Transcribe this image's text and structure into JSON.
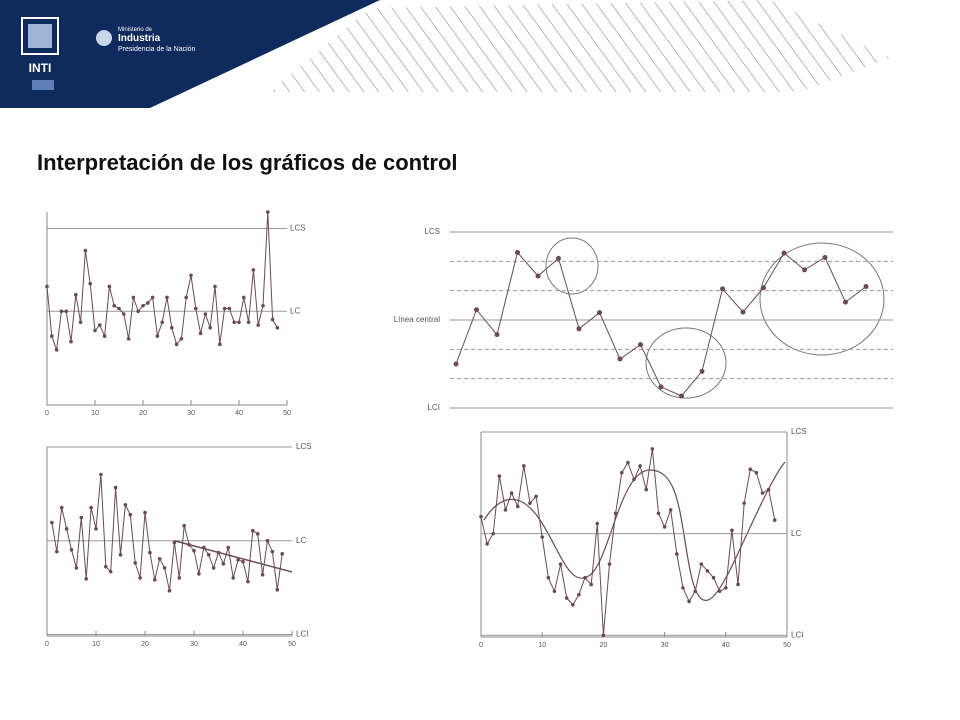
{
  "header": {
    "logo": "INTI",
    "ministry": [
      "Ministerio de",
      "Industria",
      "Presidencia de la Nación"
    ]
  },
  "title": "Interpretación de los gráficos de control",
  "chart_data": [
    {
      "type": "line",
      "ylim": [
        -3.4,
        3.6
      ],
      "xlim": [
        0,
        50
      ],
      "xticks": [
        0,
        10,
        20,
        30,
        40,
        50
      ],
      "limits": [
        {
          "label": "LCS",
          "value": 3
        },
        {
          "label": "LC",
          "value": 0
        }
      ],
      "x": [
        0,
        1,
        2,
        3,
        4,
        5,
        6,
        7,
        8,
        9,
        10,
        11,
        12,
        13,
        14,
        15,
        16,
        17,
        18,
        19,
        20,
        21,
        22,
        23,
        24,
        25,
        26,
        27,
        28,
        29,
        30,
        31,
        32,
        33,
        34,
        35,
        36,
        37,
        38,
        39,
        40,
        41,
        42,
        43,
        44,
        45,
        46,
        47,
        48
      ],
      "values": [
        0.9,
        -0.9,
        -1.4,
        0,
        0,
        -1.1,
        0.6,
        -0.4,
        2.2,
        1.0,
        -0.7,
        -0.5,
        -0.9,
        0.9,
        0.2,
        0.1,
        -0.1,
        -1.0,
        0.5,
        0,
        0.2,
        0.3,
        0.5,
        -0.9,
        -0.4,
        0.5,
        -0.6,
        -1.2,
        -1.0,
        0.5,
        1.3,
        0.1,
        -0.8,
        -0.1,
        -0.6,
        0.9,
        -1.2,
        0.1,
        0.1,
        -0.4,
        -0.4,
        0.5,
        -0.4,
        1.5,
        -0.5,
        0.2,
        3.6,
        -0.3,
        -0.6
      ]
    },
    {
      "type": "line",
      "ylim": [
        -3,
        3
      ],
      "limits": [
        {
          "label": "LCS",
          "value": 3
        },
        {
          "label": "Línea central",
          "value": 0
        },
        {
          "label": "LCI",
          "value": -3
        }
      ],
      "zones": [
        -2,
        -1,
        1,
        2
      ],
      "categories": [
        null,
        null,
        null,
        null,
        null,
        null,
        null,
        null,
        null,
        null,
        null,
        null,
        null,
        null,
        null,
        null,
        null,
        null,
        null,
        null,
        null
      ],
      "values": [
        -1.5,
        0.35,
        -0.5,
        2.3,
        1.5,
        2.1,
        -0.3,
        0.25,
        -1.33,
        -0.84,
        -2.28,
        -2.59,
        -1.75,
        1.06,
        0.27,
        1.1,
        2.28,
        1.71,
        2.13,
        0.61,
        1.14
      ]
    },
    {
      "type": "line",
      "ylim": [
        -3.05,
        3
      ],
      "xlim": [
        0,
        50
      ],
      "xticks": [
        0,
        10,
        20,
        30,
        40,
        50
      ],
      "limits": [
        {
          "label": "LCS",
          "value": 3
        },
        {
          "label": "LC",
          "value": 0
        },
        {
          "label": "LCI",
          "value": -3
        }
      ],
      "x": [
        1,
        2,
        3,
        4,
        5,
        6,
        7,
        8,
        9,
        10,
        11,
        12,
        13,
        14,
        15,
        16,
        17,
        18,
        19,
        20,
        21,
        22,
        23,
        24,
        25,
        26,
        27,
        28,
        29,
        30,
        31,
        32,
        33,
        34,
        35,
        36,
        37,
        38,
        39,
        40,
        41,
        42,
        43,
        44,
        45,
        46,
        47,
        48
      ],
      "values": [
        0.58,
        -0.35,
        1.06,
        0.38,
        -0.29,
        -0.87,
        0.74,
        -1.22,
        1.06,
        0.38,
        2.12,
        -0.83,
        -0.99,
        1.7,
        -0.45,
        1.15,
        0.83,
        -0.71,
        -1.19,
        0.9,
        -0.38,
        -1.25,
        -0.58,
        -0.87,
        -1.6,
        -0.06,
        -1.19,
        0.48,
        -0.13,
        -0.32,
        -1.06,
        -0.22,
        -0.45,
        -0.87,
        -0.38,
        -0.74,
        -0.22,
        -1.19,
        -0.61,
        -0.67,
        -1.31,
        0.32,
        0.22,
        -1.09,
        0,
        -0.35,
        -1.57,
        -0.42
      ],
      "trend": {
        "x": [
          26,
          50
        ],
        "values": [
          0,
          -1
        ]
      }
    },
    {
      "type": "line",
      "ylim": [
        -3.05,
        3
      ],
      "xlim": [
        0,
        50
      ],
      "xticks": [
        0,
        10,
        20,
        30,
        40,
        50
      ],
      "limits": [
        {
          "label": "LCS",
          "value": 3
        },
        {
          "label": "LC",
          "value": 0
        },
        {
          "label": "LCI",
          "value": -3
        }
      ],
      "x": [
        0,
        1,
        2,
        3,
        4,
        5,
        6,
        7,
        8,
        9,
        10,
        11,
        12,
        13,
        14,
        15,
        16,
        17,
        18,
        19,
        20,
        21,
        22,
        23,
        24,
        25,
        26,
        27,
        28,
        29,
        30,
        31,
        32,
        33,
        34,
        35,
        36,
        37,
        38,
        39,
        40,
        41,
        42,
        43,
        44,
        45,
        46,
        47,
        48
      ],
      "values": [
        0.5,
        -0.3,
        0,
        1.7,
        0.7,
        1.2,
        0.8,
        2.0,
        0.9,
        1.1,
        -0.1,
        -1.3,
        -1.7,
        -0.9,
        -1.9,
        -2.1,
        -1.8,
        -1.3,
        -1.5,
        0.3,
        -3.0,
        -0.9,
        0.6,
        1.8,
        2.1,
        1.6,
        2.0,
        1.3,
        2.5,
        0.6,
        0.2,
        0.7,
        -0.6,
        -1.6,
        -2.0,
        -1.7,
        -0.9,
        -1.1,
        -1.3,
        -1.7,
        -1.6,
        0.1,
        -1.5,
        0.9,
        1.9,
        1.8,
        1.2,
        1.3,
        0.4
      ]
    }
  ]
}
